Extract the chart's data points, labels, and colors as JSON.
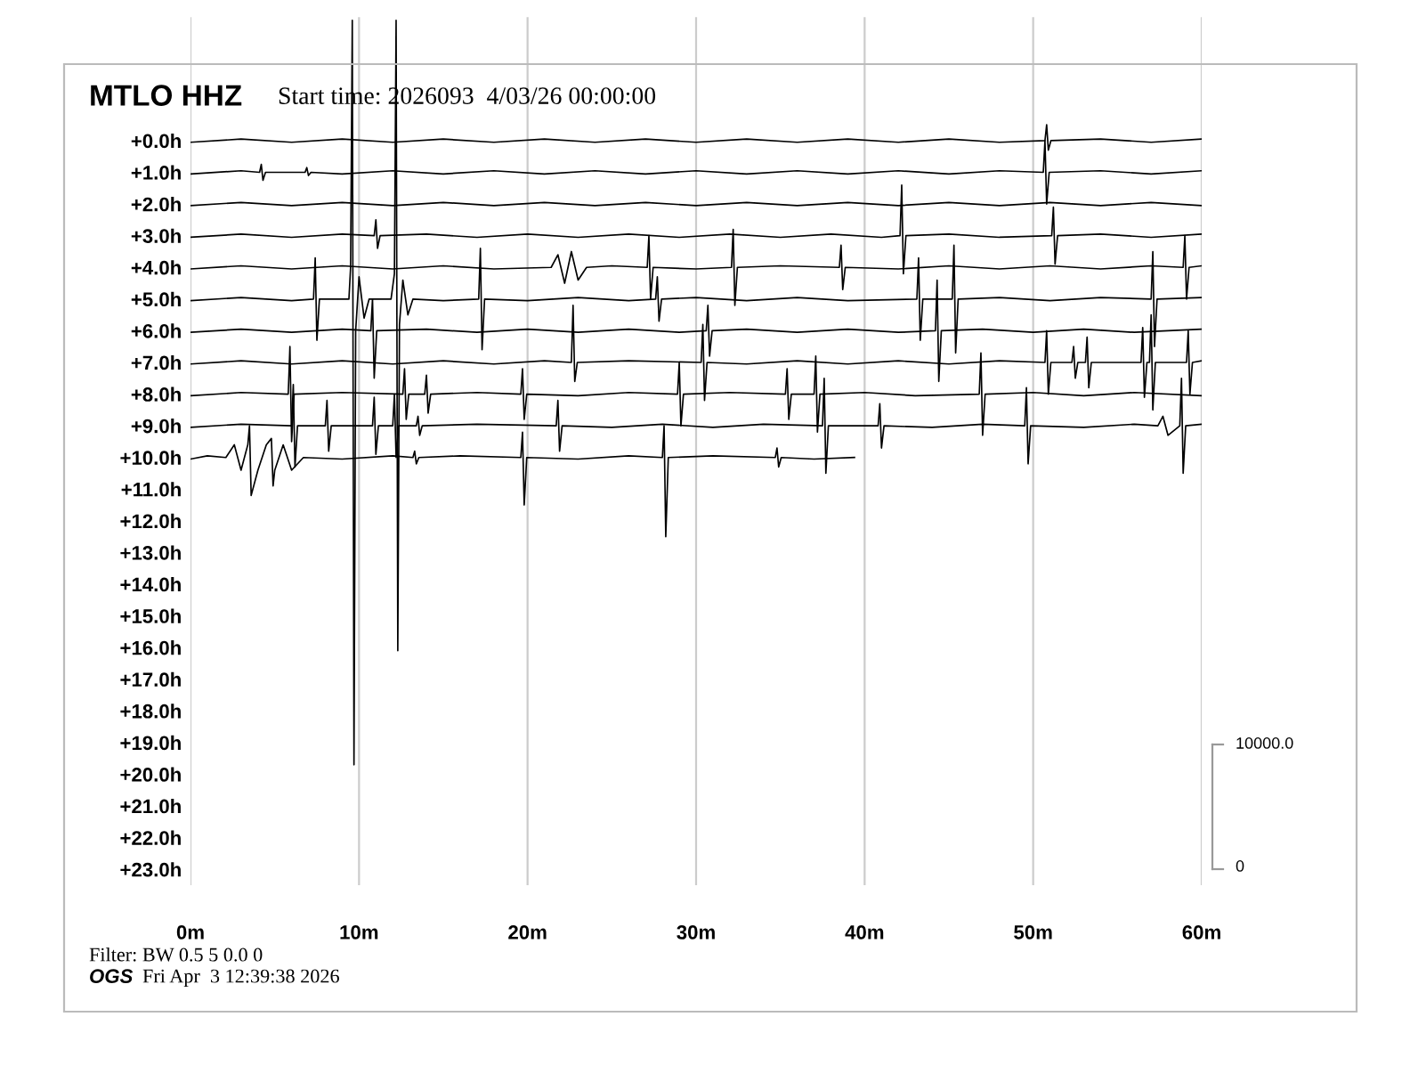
{
  "chart_data": {
    "type": "line",
    "title": "MTLO HHZ",
    "subtitle": "Start time: 2026093  4/03/26 00:00:00",
    "annotations": [
      "Filter: BW 0.5 5 0.0 0",
      "OGS",
      "Fri Apr  3 12:39:38 2026",
      "10000.0",
      "0"
    ],
    "xlim": [
      0,
      60
    ],
    "xticks": [
      {
        "value": 0,
        "label": "0m"
      },
      {
        "value": 10,
        "label": "10m"
      },
      {
        "value": 20,
        "label": "20m"
      },
      {
        "value": 30,
        "label": "30m"
      },
      {
        "value": 40,
        "label": "40m"
      },
      {
        "value": 50,
        "label": "50m"
      },
      {
        "value": 60,
        "label": "60m"
      }
    ],
    "ylim": [
      23.5,
      -3.9
    ],
    "yticks": [
      {
        "value": 0,
        "label": "+0.0h"
      },
      {
        "value": 1,
        "label": "+1.0h"
      },
      {
        "value": 2,
        "label": "+2.0h"
      },
      {
        "value": 3,
        "label": "+3.0h"
      },
      {
        "value": 4,
        "label": "+4.0h"
      },
      {
        "value": 5,
        "label": "+5.0h"
      },
      {
        "value": 6,
        "label": "+6.0h"
      },
      {
        "value": 7,
        "label": "+7.0h"
      },
      {
        "value": 8,
        "label": "+8.0h"
      },
      {
        "value": 9,
        "label": "+9.0h"
      },
      {
        "value": 10,
        "label": "+10.0h"
      },
      {
        "value": 11,
        "label": "+11.0h"
      },
      {
        "value": 12,
        "label": "+12.0h"
      },
      {
        "value": 13,
        "label": "+13.0h"
      },
      {
        "value": 14,
        "label": "+14.0h"
      },
      {
        "value": 15,
        "label": "+15.0h"
      },
      {
        "value": 16,
        "label": "+16.0h"
      },
      {
        "value": 17,
        "label": "+17.0h"
      },
      {
        "value": 18,
        "label": "+18.0h"
      },
      {
        "value": 19,
        "label": "+19.0h"
      },
      {
        "value": 20,
        "label": "+20.0h"
      },
      {
        "value": 21,
        "label": "+21.0h"
      },
      {
        "value": 22,
        "label": "+22.0h"
      },
      {
        "value": 23,
        "label": "+23.0h"
      }
    ],
    "grid": "x",
    "legend": false,
    "series": [
      {
        "color": "#000000",
        "x": [
          0,
          3,
          6,
          9,
          12,
          15,
          18,
          21,
          24,
          27,
          30,
          33,
          36,
          39,
          42,
          45,
          48,
          50.7,
          50.8,
          50.9,
          51.05,
          54,
          57,
          60
        ],
        "values": [
          0.05,
          -0.05,
          0.05,
          -0.05,
          0.05,
          -0.05,
          0.05,
          -0.05,
          0.05,
          -0.05,
          0.05,
          -0.05,
          0.05,
          -0.05,
          0.05,
          -0.05,
          0.05,
          0,
          -0.5,
          0.3,
          0,
          -0.05,
          0.05,
          -0.05
        ]
      },
      {
        "color": "#000000",
        "x": [
          0,
          3,
          4.1,
          4.2,
          4.3,
          4.45,
          6.8,
          6.9,
          7,
          7.15,
          9,
          12,
          15,
          18,
          21,
          24,
          27,
          30,
          33,
          36,
          39,
          42,
          45,
          48,
          50.6,
          50.7,
          50.8,
          50.95,
          54,
          57,
          60
        ],
        "values": [
          1.05,
          0.95,
          1,
          0.75,
          1.25,
          1,
          1,
          0.85,
          1.1,
          1,
          1.05,
          0.95,
          1.05,
          0.95,
          1.05,
          0.95,
          1.05,
          0.95,
          1.05,
          0.95,
          1.05,
          0.95,
          1.05,
          0.95,
          1,
          0,
          2,
          1,
          0.95,
          1.05,
          0.95
        ]
      },
      {
        "color": "#000000",
        "x": [
          0,
          3,
          6,
          9,
          12,
          15,
          18,
          21,
          24,
          27,
          30,
          33,
          36,
          39,
          42,
          45,
          48,
          51,
          54,
          57,
          60
        ],
        "values": [
          2.05,
          1.95,
          2.05,
          1.95,
          2.05,
          1.95,
          2.05,
          1.95,
          2.05,
          1.95,
          2.05,
          1.95,
          2.05,
          1.95,
          2.05,
          1.95,
          2.05,
          1.95,
          2.05,
          1.95,
          2.05
        ]
      },
      {
        "color": "#000000",
        "x": [
          0,
          3,
          6,
          9,
          10.9,
          11,
          11.1,
          11.25,
          14,
          17,
          20,
          23,
          26,
          29,
          32,
          35,
          38,
          41,
          42.1,
          42.2,
          42.3,
          42.45,
          45,
          48,
          51.1,
          51.2,
          51.3,
          51.45,
          54,
          57,
          60
        ],
        "values": [
          3.05,
          2.95,
          3.05,
          2.95,
          3,
          2.5,
          3.4,
          3,
          2.95,
          3.05,
          2.95,
          3.05,
          2.95,
          3.05,
          2.95,
          3.05,
          2.95,
          3.05,
          3,
          1.4,
          4.2,
          3,
          2.95,
          3.05,
          3,
          2.1,
          3.9,
          3,
          2.95,
          3.05,
          2.95
        ]
      },
      {
        "color": "#000000",
        "x": [
          0,
          3,
          6,
          9,
          12,
          15,
          18,
          21.4,
          21.8,
          22.2,
          22.6,
          23,
          23.5,
          25,
          27.1,
          27.2,
          27.3,
          27.45,
          30,
          32.1,
          32.2,
          32.3,
          32.45,
          35,
          38.5,
          38.6,
          38.7,
          38.85,
          42,
          45,
          48,
          51,
          54,
          57,
          58.9,
          59,
          59.1,
          59.25,
          60
        ],
        "values": [
          4.05,
          3.95,
          4.05,
          3.95,
          4.05,
          3.95,
          4.05,
          4,
          3.6,
          4.5,
          3.5,
          4.4,
          4,
          3.95,
          4,
          3,
          5,
          4,
          4.05,
          4,
          2.8,
          5.2,
          4,
          3.95,
          4,
          3.3,
          4.7,
          4,
          4.05,
          3.95,
          4.05,
          3.95,
          4.05,
          3.95,
          4,
          3,
          5,
          4,
          3.95
        ]
      },
      {
        "color": "#000000",
        "x": [
          0,
          3,
          6,
          7.3,
          7.4,
          7.5,
          7.65,
          9.4,
          9.5,
          9.6,
          9.7,
          9.8,
          10,
          10.3,
          10.6,
          11.9,
          12.1,
          12.2,
          12.3,
          12.4,
          12.6,
          12.9,
          13.2,
          15,
          17.1,
          17.2,
          17.3,
          17.45,
          20,
          23,
          26,
          27.6,
          27.7,
          27.8,
          27.95,
          30,
          33,
          36,
          39,
          43.1,
          43.2,
          43.3,
          43.45,
          45.2,
          45.3,
          45.4,
          45.55,
          48,
          51,
          54,
          57,
          57.1,
          57.2,
          57.35,
          60
        ],
        "values": [
          5.05,
          4.95,
          5.05,
          5,
          3.7,
          6.3,
          5,
          5,
          4,
          -3.8,
          19.7,
          6,
          4.3,
          5.6,
          5,
          5,
          4.2,
          -3.8,
          16.1,
          5.8,
          4.4,
          5.5,
          5,
          5.05,
          5,
          3.4,
          6.6,
          5,
          5.05,
          4.95,
          5.05,
          5,
          4.3,
          5.7,
          5,
          4.95,
          5.05,
          4.95,
          5.05,
          5,
          3.7,
          6.3,
          5,
          5,
          3.3,
          6.7,
          5,
          4.95,
          5.05,
          4.95,
          5,
          3.5,
          6.5,
          5,
          4.95
        ]
      },
      {
        "color": "#000000",
        "x": [
          0,
          3,
          6,
          9,
          10.7,
          10.8,
          10.9,
          11.05,
          14,
          17,
          20,
          23,
          26,
          29,
          30.6,
          30.7,
          30.8,
          30.95,
          33,
          36,
          39,
          42,
          44.2,
          44.3,
          44.4,
          44.55,
          47,
          50,
          53,
          56,
          60
        ],
        "values": [
          6.05,
          5.95,
          6.05,
          5.95,
          6,
          5,
          7.5,
          6,
          5.95,
          6.05,
          5.95,
          6.05,
          5.95,
          6.05,
          6,
          5.2,
          6.8,
          6,
          5.95,
          6.05,
          5.95,
          6.05,
          6,
          4.4,
          7.6,
          6,
          5.95,
          6.05,
          5.95,
          6.05,
          5.95
        ]
      },
      {
        "color": "#000000",
        "x": [
          0,
          3,
          6,
          9,
          12,
          15,
          18,
          21,
          22.6,
          22.7,
          22.8,
          22.95,
          26,
          30.3,
          30.4,
          30.5,
          30.65,
          33,
          36,
          39,
          42,
          45,
          48,
          50.7,
          50.8,
          50.9,
          51.05,
          52.3,
          52.4,
          52.5,
          52.65,
          53.1,
          53.2,
          53.3,
          53.45,
          56.4,
          56.5,
          56.6,
          56.75,
          56.9,
          57,
          57.1,
          57.25,
          59.1,
          59.2,
          59.3,
          59.45,
          60
        ],
        "values": [
          7.05,
          6.95,
          7.05,
          6.95,
          7.05,
          6.95,
          7.05,
          6.95,
          7,
          5.2,
          7.6,
          7,
          6.95,
          7,
          5.8,
          8.2,
          7,
          7.05,
          6.95,
          7.05,
          6.95,
          7.05,
          6.95,
          7,
          6,
          8,
          7,
          7,
          6.5,
          7.5,
          7,
          7,
          6.2,
          7.8,
          7,
          7,
          5.9,
          8.1,
          7,
          7,
          5.5,
          8.5,
          7,
          7,
          6,
          8,
          7,
          6.95
        ]
      },
      {
        "color": "#000000",
        "x": [
          0,
          3,
          5.8,
          5.9,
          6,
          6.15,
          9,
          12.6,
          12.7,
          12.8,
          12.95,
          13.9,
          14,
          14.1,
          14.25,
          17,
          19.6,
          19.7,
          19.8,
          19.95,
          23,
          26,
          28.9,
          29,
          29.1,
          29.25,
          32,
          35.3,
          35.4,
          35.5,
          35.65,
          37,
          37.1,
          37.2,
          37.35,
          40,
          43,
          46.8,
          46.9,
          47,
          47.15,
          50,
          53,
          56,
          60
        ],
        "values": [
          8.05,
          7.95,
          8,
          6.5,
          9.5,
          8,
          7.95,
          8,
          7.2,
          8.8,
          8,
          8,
          7.4,
          8.6,
          8,
          7.95,
          8,
          7.2,
          8.8,
          8,
          8.05,
          7.95,
          8,
          7,
          9,
          8,
          7.95,
          8,
          7.2,
          8.8,
          8,
          8,
          6.8,
          9.2,
          8,
          7.95,
          8.05,
          8,
          6.7,
          9.3,
          8,
          7.95,
          8.05,
          7.95,
          8.05
        ]
      },
      {
        "color": "#000000",
        "x": [
          0,
          3,
          6,
          6.1,
          6.2,
          6.35,
          8,
          8.1,
          8.2,
          8.35,
          10.8,
          10.9,
          11,
          11.15,
          12,
          12.1,
          12.2,
          12.35,
          13.4,
          13.5,
          13.6,
          13.75,
          17,
          21.7,
          21.8,
          21.9,
          22.05,
          25,
          28,
          31,
          34,
          37.5,
          37.6,
          37.7,
          37.85,
          40.8,
          40.9,
          41,
          41.15,
          44,
          47,
          49.5,
          49.6,
          49.7,
          49.85,
          53,
          56,
          57.4,
          57.7,
          58,
          58.7,
          58.8,
          58.9,
          59.05,
          60
        ],
        "values": [
          9.05,
          8.95,
          9,
          7.7,
          10.3,
          9,
          9,
          8.2,
          9.8,
          9,
          9,
          8.1,
          9.9,
          9,
          9,
          8,
          10,
          9,
          9,
          8.7,
          9.3,
          9,
          8.95,
          9,
          8.2,
          9.8,
          9,
          9.05,
          8.95,
          9.05,
          8.95,
          9,
          7.5,
          10.5,
          9,
          9,
          8.3,
          9.7,
          9,
          9.05,
          8.95,
          9,
          7.8,
          10.2,
          9,
          9.05,
          8.95,
          9,
          8.7,
          9.3,
          9,
          7.5,
          10.5,
          9,
          8.95
        ]
      },
      {
        "color": "#000000",
        "x": [
          0,
          1,
          2.1,
          2.6,
          3.0,
          3.4,
          3.5,
          3.6,
          4.0,
          4.5,
          4.8,
          4.9,
          5.0,
          5.5,
          6.0,
          6.7,
          9,
          12,
          13.2,
          13.3,
          13.4,
          13.55,
          16,
          19.6,
          19.7,
          19.8,
          19.95,
          23,
          26,
          28,
          28.1,
          28.2,
          28.35,
          31,
          34.7,
          34.8,
          34.9,
          35.05,
          37,
          39.4
        ],
        "values": [
          10.05,
          9.95,
          10,
          9.6,
          10.4,
          9.6,
          9,
          11.2,
          10.4,
          9.6,
          9.4,
          10.9,
          10.4,
          9.6,
          10.4,
          10,
          10.05,
          9.95,
          10,
          9.8,
          10.2,
          10,
          9.95,
          10,
          9.2,
          11.5,
          10,
          10.05,
          9.95,
          10,
          9,
          12.5,
          10,
          9.95,
          10,
          9.7,
          10.3,
          10,
          10.05,
          10
        ]
      }
    ]
  }
}
